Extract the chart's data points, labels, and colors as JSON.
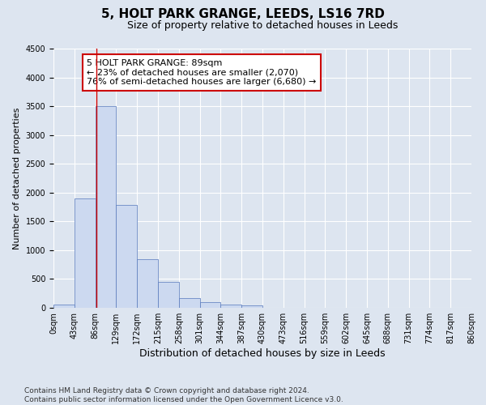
{
  "title": "5, HOLT PARK GRANGE, LEEDS, LS16 7RD",
  "subtitle": "Size of property relative to detached houses in Leeds",
  "xlabel": "Distribution of detached houses by size in Leeds",
  "ylabel": "Number of detached properties",
  "bin_labels": [
    "0sqm",
    "43sqm",
    "86sqm",
    "129sqm",
    "172sqm",
    "215sqm",
    "258sqm",
    "301sqm",
    "344sqm",
    "387sqm",
    "430sqm",
    "473sqm",
    "516sqm",
    "559sqm",
    "602sqm",
    "645sqm",
    "688sqm",
    "731sqm",
    "774sqm",
    "817sqm",
    "860sqm"
  ],
  "bar_values": [
    50,
    1900,
    3500,
    1780,
    850,
    450,
    175,
    100,
    55,
    40,
    0,
    0,
    0,
    0,
    0,
    0,
    0,
    0,
    0,
    0
  ],
  "bar_color": "#ccd9f0",
  "bar_edge_color": "#5577bb",
  "vline_x": 89,
  "vline_color": "#cc0000",
  "ylim": [
    0,
    4500
  ],
  "yticks": [
    0,
    500,
    1000,
    1500,
    2000,
    2500,
    3000,
    3500,
    4000,
    4500
  ],
  "bin_edges": [
    0,
    43,
    86,
    129,
    172,
    215,
    258,
    301,
    344,
    387,
    430,
    473,
    516,
    559,
    602,
    645,
    688,
    731,
    774,
    817,
    860
  ],
  "annotation_text": "5 HOLT PARK GRANGE: 89sqm\n← 23% of detached houses are smaller (2,070)\n76% of semi-detached houses are larger (6,680) →",
  "annotation_box_color": "#ffffff",
  "annotation_box_edge_color": "#cc0000",
  "footer_line1": "Contains HM Land Registry data © Crown copyright and database right 2024.",
  "footer_line2": "Contains public sector information licensed under the Open Government Licence v3.0.",
  "background_color": "#dde5f0",
  "plot_bg_color": "#dde5f0",
  "grid_color": "#ffffff",
  "title_fontsize": 11,
  "subtitle_fontsize": 9,
  "xlabel_fontsize": 9,
  "ylabel_fontsize": 8,
  "tick_fontsize": 7,
  "annotation_fontsize": 8,
  "footer_fontsize": 6.5
}
